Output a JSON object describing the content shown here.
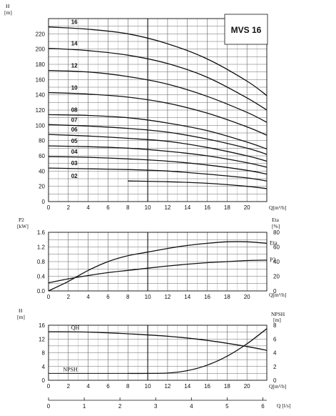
{
  "chart_data": [
    {
      "type": "line",
      "model_label": "MVS 16",
      "ylabel": "H",
      "yunit": "[m]",
      "xlabel": "Q[m³/h]",
      "xlim": [
        0,
        22
      ],
      "ylim": [
        0,
        240
      ],
      "x_ticks": [
        0,
        2,
        4,
        6,
        8,
        10,
        12,
        14,
        16,
        18,
        20
      ],
      "y_ticks": [
        0,
        20,
        40,
        60,
        80,
        100,
        120,
        140,
        160,
        180,
        200,
        220
      ],
      "grid": true,
      "series": [
        {
          "name": "16",
          "x": [
            0,
            4,
            8,
            12,
            16,
            20,
            22
          ],
          "y": [
            229,
            226,
            220,
            207,
            187,
            158,
            139
          ]
        },
        {
          "name": "14",
          "x": [
            0,
            4,
            8,
            12,
            16,
            20,
            22
          ],
          "y": [
            201,
            198,
            192,
            181,
            163,
            136,
            120
          ]
        },
        {
          "name": "12",
          "x": [
            0,
            4,
            8,
            12,
            16,
            20,
            22
          ],
          "y": [
            172,
            170,
            164,
            154,
            138,
            117,
            104
          ]
        },
        {
          "name": "10",
          "x": [
            0,
            4,
            8,
            12,
            16,
            20,
            22
          ],
          "y": [
            143,
            141,
            137,
            129,
            116,
            98,
            87
          ]
        },
        {
          "name": "08",
          "x": [
            0,
            4,
            8,
            12,
            16,
            20,
            22
          ],
          "y": [
            114,
            113,
            110,
            103,
            93,
            78,
            69
          ]
        },
        {
          "name": "07",
          "x": [
            0,
            4,
            8,
            12,
            16,
            20,
            22
          ],
          "y": [
            101,
            99,
            96,
            91,
            82,
            70,
            62
          ]
        },
        {
          "name": "06",
          "x": [
            0,
            4,
            8,
            12,
            16,
            20,
            22
          ],
          "y": [
            88,
            86,
            83,
            79,
            71,
            60,
            53
          ]
        },
        {
          "name": "05",
          "x": [
            0,
            4,
            8,
            12,
            16,
            20,
            22
          ],
          "y": [
            73,
            72,
            70,
            66,
            60,
            51,
            45
          ]
        },
        {
          "name": "04",
          "x": [
            0,
            4,
            8,
            12,
            16,
            20,
            22
          ],
          "y": [
            59,
            58,
            56,
            53,
            48,
            41,
            36
          ]
        },
        {
          "name": "03",
          "x": [
            0,
            4,
            8,
            12,
            16,
            20,
            22
          ],
          "y": [
            44,
            43,
            42,
            40,
            36,
            31,
            27
          ]
        },
        {
          "name": "02",
          "x": [
            8,
            12,
            16,
            20,
            22
          ],
          "y": [
            27,
            26,
            24,
            20,
            17
          ]
        }
      ]
    },
    {
      "type": "line",
      "ylabel": "P2",
      "yunit": "[kW]",
      "ylabel_right": "Eta",
      "yunit_right": "[%]",
      "xlabel": "Q[m³/h]",
      "xlim": [
        0,
        22
      ],
      "ylim": [
        0,
        1.6
      ],
      "ylim_right": [
        0,
        80
      ],
      "x_ticks": [
        0,
        2,
        4,
        6,
        8,
        10,
        12,
        14,
        16,
        18,
        20
      ],
      "y_ticks": [
        "0.0",
        "0.4",
        "0.8",
        "1.2",
        "1.6"
      ],
      "y_ticks_right": [
        0,
        20,
        40,
        60,
        80
      ],
      "grid": true,
      "series": [
        {
          "name": "Eta",
          "axis": "right",
          "x": [
            0,
            2,
            4,
            6,
            8,
            10,
            12,
            14,
            16,
            18,
            20,
            22
          ],
          "y": [
            0,
            13,
            28,
            40,
            48,
            53,
            58,
            62,
            65,
            67,
            67,
            65
          ]
        },
        {
          "name": "P2",
          "axis": "left",
          "x": [
            0,
            2,
            4,
            6,
            8,
            10,
            12,
            14,
            16,
            18,
            20,
            22
          ],
          "y": [
            0.22,
            0.33,
            0.42,
            0.5,
            0.56,
            0.62,
            0.68,
            0.73,
            0.77,
            0.8,
            0.83,
            0.84
          ]
        }
      ]
    },
    {
      "type": "line",
      "ylabel": "H",
      "yunit": "[m]",
      "ylabel_right": "NPSH",
      "yunit_right": "[m]",
      "xlabel": "Q[m³/h]",
      "xlabel_2": "Q [l/s]",
      "xlim": [
        0,
        22
      ],
      "ylim": [
        0,
        16
      ],
      "ylim_right": [
        0,
        8
      ],
      "x_ticks": [
        0,
        2,
        4,
        6,
        8,
        10,
        12,
        14,
        16,
        18,
        20
      ],
      "x2_ticks": [
        0,
        1,
        2,
        3,
        4,
        5,
        6
      ],
      "y_ticks": [
        0,
        4,
        8,
        12,
        16
      ],
      "y_ticks_right": [
        0,
        2,
        4,
        6,
        8
      ],
      "grid": true,
      "series": [
        {
          "name": "QH",
          "axis": "left",
          "x": [
            0,
            4,
            8,
            12,
            16,
            20,
            22
          ],
          "y": [
            14.1,
            14.0,
            13.5,
            12.8,
            11.6,
            9.8,
            8.7
          ]
        },
        {
          "name": "NPSH",
          "axis": "right",
          "x": [
            8,
            10,
            12,
            14,
            16,
            18,
            20,
            22
          ],
          "y": [
            1.0,
            1.0,
            1.05,
            1.4,
            2.2,
            3.5,
            5.3,
            7.5
          ]
        }
      ]
    }
  ]
}
